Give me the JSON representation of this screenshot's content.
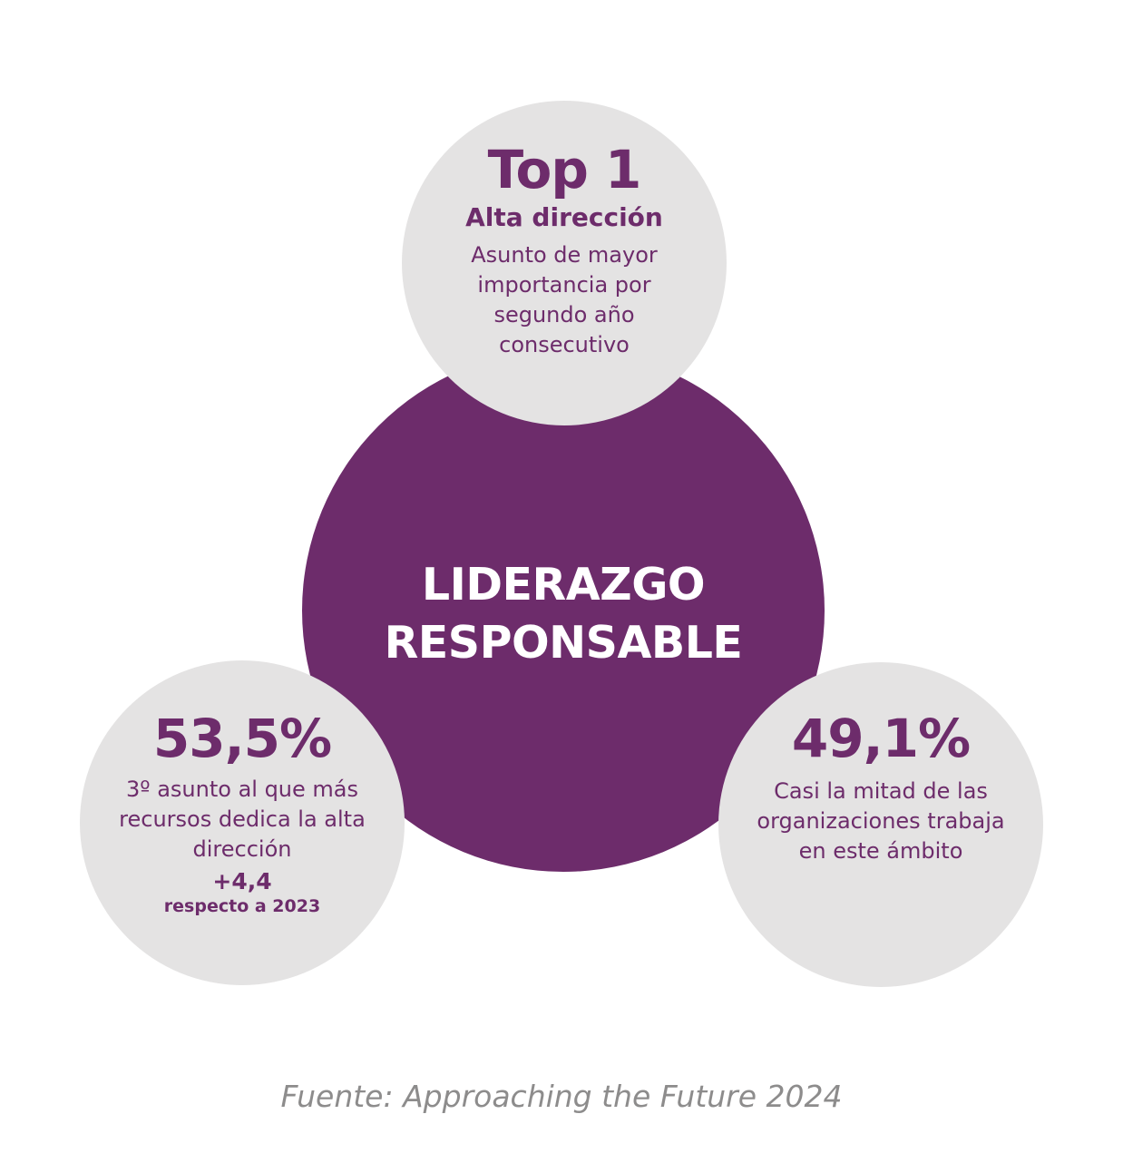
{
  "center": {
    "line1": "LIDERAZGO",
    "line2": "RESPONSABLE"
  },
  "top": {
    "headline": "Top 1",
    "subtitle": "Alta dirección",
    "description": "Asunto de mayor importancia por segundo año consecutivo"
  },
  "left": {
    "headline": "53,5%",
    "description": "3º asunto al que más recursos dedica la alta dirección",
    "delta": "+4,4",
    "delta_note": "respecto a 2023"
  },
  "right": {
    "headline": "49,1%",
    "description": "Casi la mitad de las organizaciones trabaja en este ámbito"
  },
  "source": "Fuente: Approaching the Future 2024",
  "colors": {
    "primary_purple": "#6d2c6b",
    "circle_grey": "#e4e3e3",
    "source_grey": "#8d8c8c"
  }
}
